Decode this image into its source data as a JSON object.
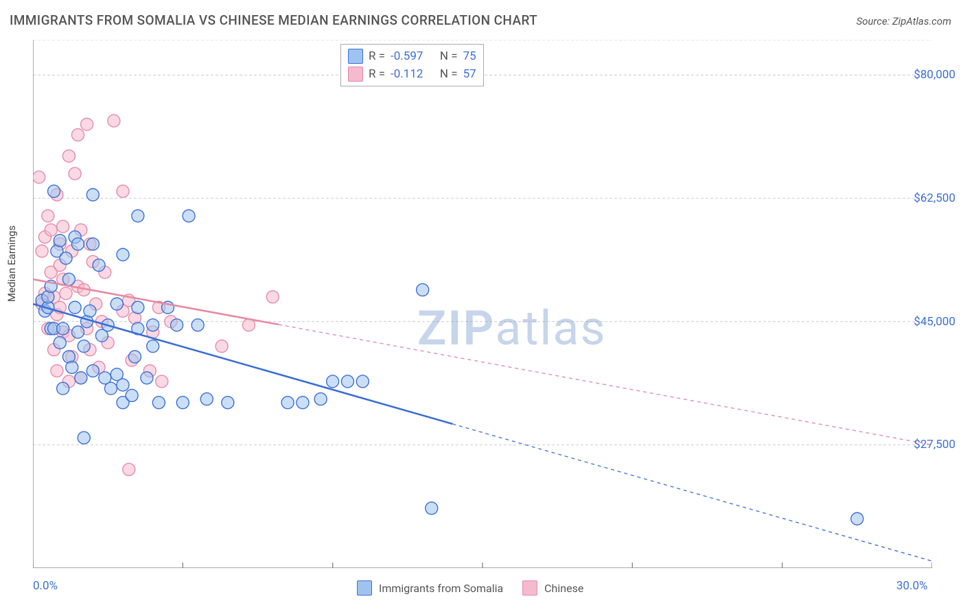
{
  "title": "IMMIGRANTS FROM SOMALIA VS CHINESE MEDIAN EARNINGS CORRELATION CHART",
  "source": "Source: ZipAtlas.com",
  "watermark_bold": "ZIP",
  "watermark_rest": "atlas",
  "ylabel": "Median Earnings",
  "chart": {
    "type": "scatter-with-trend",
    "xlim": [
      0,
      30
    ],
    "ylim": [
      10000,
      85000
    ],
    "x_ticks_minor": [
      0,
      5,
      10,
      15,
      20,
      25,
      30
    ],
    "x_ticks_label": [
      {
        "v": 0,
        "label": "0.0%"
      },
      {
        "v": 30,
        "label": "30.0%"
      }
    ],
    "y_grid": [
      27500,
      45000,
      62500,
      80000,
      85000
    ],
    "y_ticks_label": [
      {
        "v": 27500,
        "label": "$27,500"
      },
      {
        "v": 45000,
        "label": "$45,000"
      },
      {
        "v": 62500,
        "label": "$62,500"
      },
      {
        "v": 80000,
        "label": "$80,000"
      }
    ],
    "background_color": "#ffffff",
    "grid_color": "#cccccc",
    "axis_color": "#888888",
    "marker_radius": 9,
    "marker_fill_opacity": 0.55
  },
  "series": {
    "blue": {
      "label": "Immigrants from Somalia",
      "color_stroke": "#3b6fd6",
      "color_fill": "#9fc3ef",
      "R": "-0.597",
      "N": "75",
      "trend": {
        "x1": 0,
        "y1": 47500,
        "x2": 30,
        "y2": 11000
      },
      "trend_solid_until_x": 14,
      "points": [
        [
          0.3,
          48000
        ],
        [
          0.4,
          46500
        ],
        [
          0.5,
          47000
        ],
        [
          0.5,
          48500
        ],
        [
          0.6,
          44000
        ],
        [
          0.6,
          50000
        ],
        [
          0.7,
          63500
        ],
        [
          0.7,
          44000
        ],
        [
          0.8,
          55000
        ],
        [
          0.9,
          42000
        ],
        [
          0.9,
          56500
        ],
        [
          1.0,
          35500
        ],
        [
          1.0,
          44000
        ],
        [
          1.1,
          54000
        ],
        [
          1.2,
          40000
        ],
        [
          1.2,
          51000
        ],
        [
          1.3,
          38500
        ],
        [
          1.4,
          47000
        ],
        [
          1.4,
          57000
        ],
        [
          1.5,
          43500
        ],
        [
          1.5,
          56000
        ],
        [
          1.6,
          37000
        ],
        [
          1.7,
          28500
        ],
        [
          1.7,
          41500
        ],
        [
          1.8,
          45000
        ],
        [
          1.9,
          46500
        ],
        [
          2.0,
          63000
        ],
        [
          2.0,
          56000
        ],
        [
          2.0,
          38000
        ],
        [
          2.2,
          53000
        ],
        [
          2.3,
          43000
        ],
        [
          2.4,
          37000
        ],
        [
          2.5,
          44500
        ],
        [
          2.6,
          35500
        ],
        [
          2.8,
          47500
        ],
        [
          2.8,
          37500
        ],
        [
          3.0,
          36000
        ],
        [
          3.0,
          33500
        ],
        [
          3.0,
          54500
        ],
        [
          3.3,
          34500
        ],
        [
          3.4,
          40000
        ],
        [
          3.5,
          44000
        ],
        [
          3.5,
          47000
        ],
        [
          3.5,
          60000
        ],
        [
          3.8,
          37000
        ],
        [
          4.0,
          44500
        ],
        [
          4.0,
          41500
        ],
        [
          4.2,
          33500
        ],
        [
          4.5,
          47000
        ],
        [
          4.8,
          44500
        ],
        [
          5.0,
          33500
        ],
        [
          5.2,
          60000
        ],
        [
          5.5,
          44500
        ],
        [
          5.8,
          34000
        ],
        [
          6.5,
          33500
        ],
        [
          8.5,
          33500
        ],
        [
          9.0,
          33500
        ],
        [
          9.6,
          34000
        ],
        [
          10.0,
          36500
        ],
        [
          10.5,
          36500
        ],
        [
          11.0,
          36500
        ],
        [
          13.0,
          49500
        ],
        [
          13.3,
          18500
        ],
        [
          27.5,
          17000
        ]
      ]
    },
    "pink": {
      "label": "Chinese",
      "color_stroke": "#e68aa5",
      "color_fill": "#f5bacd",
      "R": "-0.112",
      "N": "57",
      "trend": {
        "x1": 0,
        "y1": 51000,
        "x2": 30,
        "y2": 27500
      },
      "trend_solid_until_x": 8.2,
      "points": [
        [
          0.2,
          65500
        ],
        [
          0.3,
          47500
        ],
        [
          0.3,
          55000
        ],
        [
          0.4,
          57000
        ],
        [
          0.4,
          49000
        ],
        [
          0.5,
          44000
        ],
        [
          0.5,
          60000
        ],
        [
          0.6,
          52000
        ],
        [
          0.6,
          58000
        ],
        [
          0.7,
          48500
        ],
        [
          0.7,
          41000
        ],
        [
          0.8,
          63000
        ],
        [
          0.8,
          46000
        ],
        [
          0.8,
          38000
        ],
        [
          0.9,
          56000
        ],
        [
          0.9,
          53000
        ],
        [
          0.9,
          47000
        ],
        [
          1.0,
          58500
        ],
        [
          1.0,
          51000
        ],
        [
          1.0,
          43500
        ],
        [
          1.1,
          49000
        ],
        [
          1.2,
          68500
        ],
        [
          1.2,
          43000
        ],
        [
          1.2,
          36500
        ],
        [
          1.3,
          55000
        ],
        [
          1.3,
          40000
        ],
        [
          1.4,
          66000
        ],
        [
          1.5,
          71500
        ],
        [
          1.5,
          50000
        ],
        [
          1.6,
          58000
        ],
        [
          1.6,
          37000
        ],
        [
          1.7,
          49500
        ],
        [
          1.8,
          44000
        ],
        [
          1.8,
          73000
        ],
        [
          1.9,
          41000
        ],
        [
          1.9,
          56000
        ],
        [
          2.0,
          53500
        ],
        [
          2.1,
          47500
        ],
        [
          2.2,
          38500
        ],
        [
          2.3,
          45000
        ],
        [
          2.4,
          52000
        ],
        [
          2.5,
          42000
        ],
        [
          2.7,
          73500
        ],
        [
          3.0,
          63500
        ],
        [
          3.0,
          46500
        ],
        [
          3.2,
          48000
        ],
        [
          3.2,
          24000
        ],
        [
          3.3,
          39500
        ],
        [
          3.4,
          45500
        ],
        [
          3.9,
          38000
        ],
        [
          4.0,
          43500
        ],
        [
          4.2,
          47000
        ],
        [
          4.3,
          36500
        ],
        [
          4.6,
          45000
        ],
        [
          6.3,
          41500
        ],
        [
          7.2,
          44500
        ],
        [
          8.0,
          48500
        ]
      ]
    }
  },
  "stats_legend": {
    "r_label": "R =",
    "n_label": "N ="
  }
}
